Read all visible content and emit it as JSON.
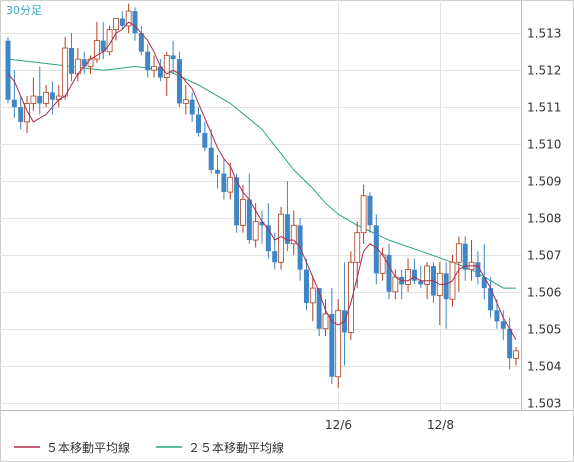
{
  "timeframe_label": "30分足",
  "colors": {
    "up": "#ffffff",
    "up_border": "#b04020",
    "down": "#3e86c6",
    "ma5": "#b02a4a",
    "ma25": "#2aa57a",
    "grid": "#e3e3e3",
    "frame": "#cfcfcf"
  },
  "legend": {
    "ma5_label": "５本移動平均線",
    "ma25_label": "２５本移動平均線"
  },
  "chart_data": {
    "type": "candlestick",
    "ylim": [
      1.5028,
      1.5139
    ],
    "y_ticks": [
      "1.513",
      "1.512",
      "1.511",
      "1.510",
      "1.509",
      "1.508",
      "1.507",
      "1.506",
      "1.505",
      "1.504",
      "1.503"
    ],
    "x_ticks": [
      {
        "label": "12/6",
        "index": 52
      },
      {
        "label": "12/8",
        "index": 68
      }
    ],
    "grid": true,
    "legend_position": "bottom-left",
    "candles": [
      [
        1.5128,
        1.5129,
        1.5111,
        1.5112
      ],
      [
        1.5112,
        1.512,
        1.5107,
        1.511
      ],
      [
        1.511,
        1.5113,
        1.5104,
        1.5106
      ],
      [
        1.5106,
        1.5113,
        1.5103,
        1.5111
      ],
      [
        1.5111,
        1.5118,
        1.5109,
        1.5113
      ],
      [
        1.5113,
        1.5121,
        1.5108,
        1.5111
      ],
      [
        1.5111,
        1.5116,
        1.511,
        1.5114
      ],
      [
        1.5114,
        1.5117,
        1.5108,
        1.5112
      ],
      [
        1.5112,
        1.5116,
        1.511,
        1.5113
      ],
      [
        1.5113,
        1.5129,
        1.5112,
        1.5126
      ],
      [
        1.5126,
        1.513,
        1.5117,
        1.5119
      ],
      [
        1.5119,
        1.5126,
        1.5117,
        1.5123
      ],
      [
        1.5123,
        1.5125,
        1.5119,
        1.5121
      ],
      [
        1.5121,
        1.5124,
        1.5119,
        1.5123
      ],
      [
        1.5123,
        1.5133,
        1.5122,
        1.5128
      ],
      [
        1.5128,
        1.5133,
        1.5123,
        1.5125
      ],
      [
        1.5125,
        1.5132,
        1.5124,
        1.5131
      ],
      [
        1.5131,
        1.5134,
        1.5128,
        1.5134
      ],
      [
        1.5134,
        1.5136,
        1.5131,
        1.5132
      ],
      [
        1.5132,
        1.5138,
        1.513,
        1.5136
      ],
      [
        1.5136,
        1.5137,
        1.5128,
        1.513
      ],
      [
        1.513,
        1.5132,
        1.5124,
        1.5125
      ],
      [
        1.5125,
        1.5127,
        1.5118,
        1.512
      ],
      [
        1.512,
        1.5124,
        1.5118,
        1.5121
      ],
      [
        1.5121,
        1.5123,
        1.5117,
        1.5118
      ],
      [
        1.5118,
        1.5125,
        1.5113,
        1.5124
      ],
      [
        1.5124,
        1.5128,
        1.5119,
        1.5123
      ],
      [
        1.5123,
        1.5125,
        1.511,
        1.5111
      ],
      [
        1.5111,
        1.5116,
        1.5108,
        1.5112
      ],
      [
        1.5112,
        1.5114,
        1.5106,
        1.5108
      ],
      [
        1.5108,
        1.511,
        1.5102,
        1.5103
      ],
      [
        1.5103,
        1.5106,
        1.5098,
        1.5099
      ],
      [
        1.5099,
        1.5104,
        1.5092,
        1.5093
      ],
      [
        1.5093,
        1.5097,
        1.5088,
        1.5092
      ],
      [
        1.5092,
        1.5096,
        1.5085,
        1.5087
      ],
      [
        1.5087,
        1.5095,
        1.5085,
        1.5091
      ],
      [
        1.5091,
        1.5092,
        1.5076,
        1.5078
      ],
      [
        1.5078,
        1.5089,
        1.5076,
        1.5085
      ],
      [
        1.5085,
        1.5092,
        1.5073,
        1.5074
      ],
      [
        1.5074,
        1.5084,
        1.5072,
        1.5079
      ],
      [
        1.5079,
        1.5082,
        1.5073,
        1.5078
      ],
      [
        1.5078,
        1.5084,
        1.5069,
        1.5071
      ],
      [
        1.5071,
        1.5076,
        1.5066,
        1.5068
      ],
      [
        1.5068,
        1.5083,
        1.5066,
        1.5081
      ],
      [
        1.5081,
        1.509,
        1.5071,
        1.5073
      ],
      [
        1.5073,
        1.5082,
        1.507,
        1.5078
      ],
      [
        1.5078,
        1.508,
        1.5063,
        1.5066
      ],
      [
        1.5066,
        1.5069,
        1.5055,
        1.5057
      ],
      [
        1.5057,
        1.5064,
        1.5052,
        1.5061
      ],
      [
        1.5061,
        1.5061,
        1.5048,
        1.505
      ],
      [
        1.505,
        1.5058,
        1.5048,
        1.5054
      ],
      [
        1.5054,
        1.5061,
        1.5035,
        1.5037
      ],
      [
        1.5037,
        1.5058,
        1.5034,
        1.5055
      ],
      [
        1.5055,
        1.5068,
        1.504,
        1.5049
      ],
      [
        1.5049,
        1.5071,
        1.5047,
        1.5068
      ],
      [
        1.5068,
        1.5079,
        1.5061,
        1.5076
      ],
      [
        1.5076,
        1.5089,
        1.5073,
        1.5086
      ],
      [
        1.5086,
        1.5087,
        1.5076,
        1.5078
      ],
      [
        1.5078,
        1.5081,
        1.5062,
        1.5065
      ],
      [
        1.5065,
        1.5072,
        1.5063,
        1.507
      ],
      [
        1.507,
        1.5073,
        1.5058,
        1.506
      ],
      [
        1.506,
        1.5066,
        1.5058,
        1.5064
      ],
      [
        1.5064,
        1.5066,
        1.5058,
        1.5062
      ],
      [
        1.5062,
        1.5069,
        1.506,
        1.5066
      ],
      [
        1.5066,
        1.5069,
        1.5062,
        1.5063
      ],
      [
        1.5063,
        1.5067,
        1.5061,
        1.5062
      ],
      [
        1.5062,
        1.5068,
        1.5058,
        1.5067
      ],
      [
        1.5067,
        1.5068,
        1.5057,
        1.5059
      ],
      [
        1.5059,
        1.5068,
        1.5051,
        1.5065
      ],
      [
        1.5065,
        1.5068,
        1.505,
        1.5058
      ],
      [
        1.5058,
        1.507,
        1.5056,
        1.5068
      ],
      [
        1.5068,
        1.5075,
        1.506,
        1.5073
      ],
      [
        1.5073,
        1.5075,
        1.5063,
        1.5066
      ],
      [
        1.5066,
        1.5074,
        1.5063,
        1.5068
      ],
      [
        1.5068,
        1.5071,
        1.5062,
        1.5064
      ],
      [
        1.5064,
        1.5073,
        1.5058,
        1.5061
      ],
      [
        1.5061,
        1.5064,
        1.5053,
        1.5055
      ],
      [
        1.5055,
        1.5058,
        1.505,
        1.5052
      ],
      [
        1.5052,
        1.5055,
        1.5047,
        1.505
      ],
      [
        1.505,
        1.5053,
        1.5039,
        1.5042
      ],
      [
        1.5042,
        1.5045,
        1.504,
        1.5044
      ]
    ],
    "ma5": [
      1.5119,
      1.5117,
      1.5113,
      1.5109,
      1.5106,
      1.5107,
      1.5108,
      1.511,
      1.5112,
      1.5113,
      1.5116,
      1.5119,
      1.5121,
      1.5123,
      1.5124,
      1.5125,
      1.5127,
      1.513,
      1.5131,
      1.5133,
      1.5132,
      1.513,
      1.5128,
      1.5125,
      1.5121,
      1.5119,
      1.512,
      1.5119,
      1.5117,
      1.5115,
      1.5111,
      1.5107,
      1.5103,
      1.5099,
      1.5096,
      1.5094,
      1.509,
      1.5087,
      1.5085,
      1.5082,
      1.5079,
      1.5077,
      1.5074,
      1.5075,
      1.5074,
      1.5074,
      1.5072,
      1.5068,
      1.5064,
      1.506,
      1.5055,
      1.5052,
      1.5051,
      1.5052,
      1.5057,
      1.5064,
      1.5071,
      1.5073,
      1.5072,
      1.507,
      1.5067,
      1.5064,
      1.5063,
      1.5063,
      1.5064,
      1.5063,
      1.5063,
      1.5063,
      1.5062,
      1.5062,
      1.5063,
      1.5066,
      1.5067,
      1.5067,
      1.5067,
      1.5064,
      1.5061,
      1.5057,
      1.5053,
      1.505,
      1.5047
    ]
  },
  "ma25_points": [
    [
      0,
      1.5123
    ],
    [
      5,
      1.5122
    ],
    [
      10,
      1.5121
    ],
    [
      15,
      1.512
    ],
    [
      20,
      1.5121
    ],
    [
      25,
      1.512
    ],
    [
      30,
      1.5116
    ],
    [
      35,
      1.5111
    ],
    [
      40,
      1.5104
    ],
    [
      45,
      1.5093
    ],
    [
      48,
      1.5088
    ],
    [
      50,
      1.5084
    ],
    [
      52,
      1.5081
    ],
    [
      55,
      1.5078
    ],
    [
      60,
      1.5074
    ],
    [
      65,
      1.5071
    ],
    [
      70,
      1.5068
    ],
    [
      73,
      1.5066
    ],
    [
      76,
      1.5063
    ],
    [
      78,
      1.5061
    ],
    [
      80,
      1.5061
    ]
  ]
}
